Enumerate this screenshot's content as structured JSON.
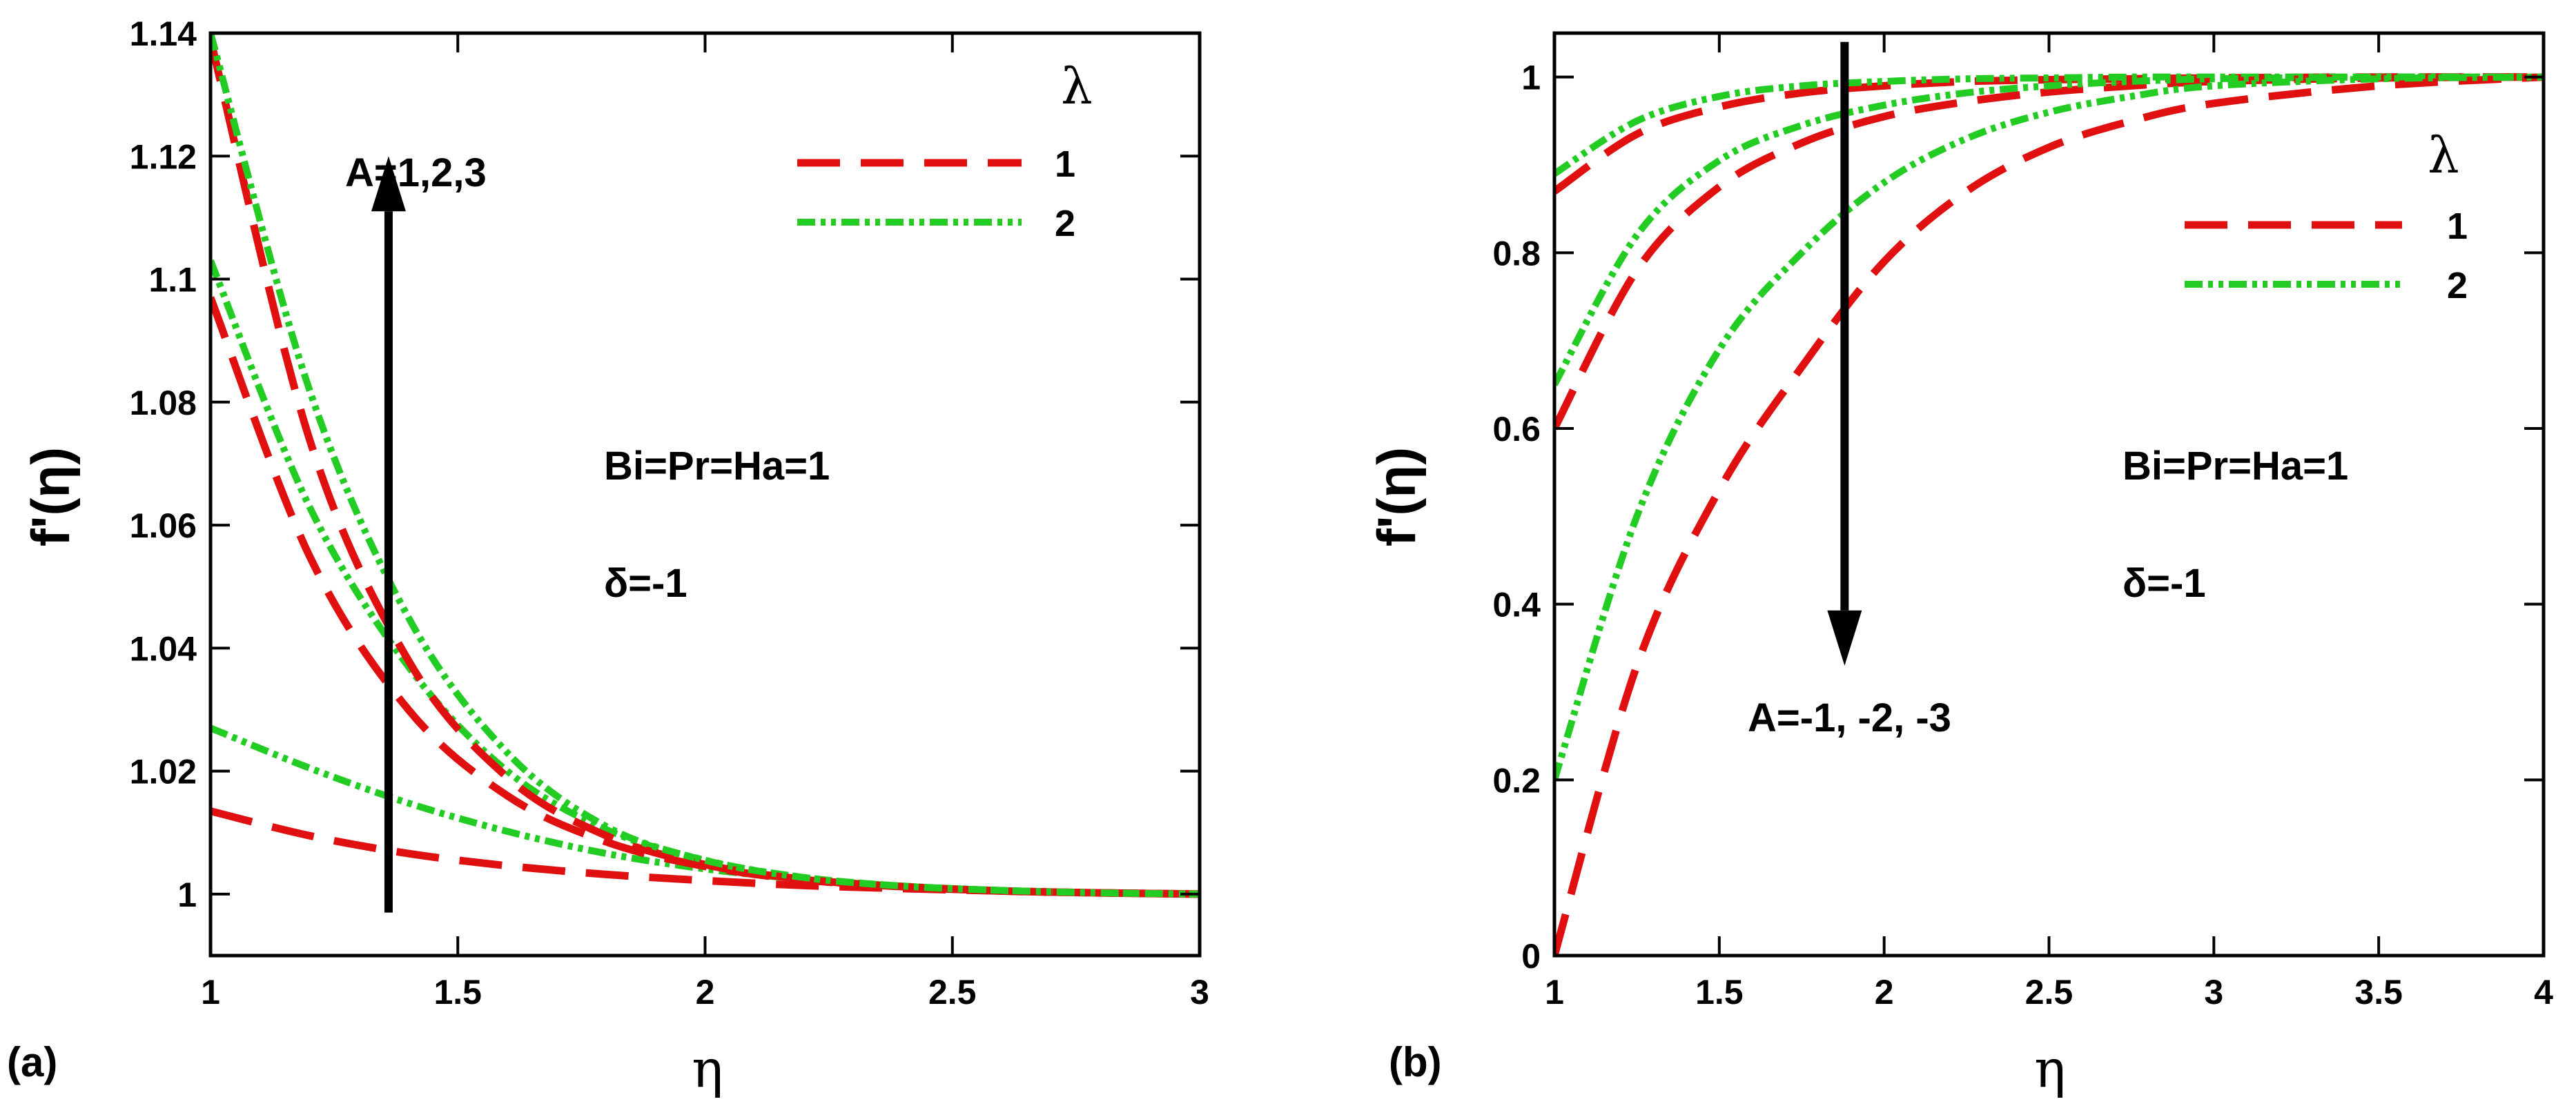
{
  "colors": {
    "red": "#e01010",
    "green": "#22cc22",
    "axis": "#000000"
  },
  "chart_data": [
    {
      "type": "line",
      "panel_label": "(a)",
      "xlabel": "η",
      "ylabel": "f'(η)",
      "xlim": [
        1,
        3
      ],
      "ylim": [
        0.99,
        1.14
      ],
      "xticks": [
        1,
        1.5,
        2,
        2.5,
        3
      ],
      "xtick_labels": [
        "1",
        "1.5",
        "2",
        "2.5",
        "3"
      ],
      "yticks": [
        1,
        1.02,
        1.04,
        1.06,
        1.08,
        1.1,
        1.12,
        1.14
      ],
      "ytick_labels": [
        "1",
        "1.02",
        "1.04",
        "1.06",
        "1.08",
        "1.1",
        "1.12",
        "1.14"
      ],
      "legend_title": "λ",
      "legend_entries": [
        {
          "label": "1",
          "color": "#e01010",
          "style": "dashed"
        },
        {
          "label": "2",
          "color": "#22cc22",
          "style": "dash-dot"
        }
      ],
      "annotations": {
        "arrow_text": "A=1,2,3",
        "params": "Bi=Pr=Ha=1",
        "delta": "δ=-1"
      },
      "arrow": {
        "x": 1.36,
        "y_from": 0.997,
        "y_to": 1.12
      },
      "series": [
        {
          "name": "λ=1, A=1",
          "lambda": 1,
          "A": 1,
          "color": "#e01010",
          "style": "dashed",
          "x": [
            1,
            1.2,
            1.4,
            1.6,
            1.8,
            2,
            2.2,
            2.4,
            2.6,
            2.8,
            3
          ],
          "y": [
            1.0135,
            1.0095,
            1.0066,
            1.0046,
            1.0032,
            1.0022,
            1.0014,
            1.0009,
            1.0005,
            1.0002,
            1.0
          ]
        },
        {
          "name": "λ=2, A=1",
          "lambda": 2,
          "A": 1,
          "color": "#22cc22",
          "style": "dash-dot",
          "x": [
            1,
            1.2,
            1.4,
            1.6,
            1.8,
            2,
            2.2,
            2.4,
            2.6,
            2.8,
            3
          ],
          "y": [
            1.027,
            1.0205,
            1.0148,
            1.0102,
            1.0066,
            1.0041,
            1.0024,
            1.0013,
            1.0006,
            1.0002,
            1.0
          ]
        },
        {
          "name": "λ=1, A=2",
          "lambda": 1,
          "A": 2,
          "color": "#e01010",
          "style": "dashed",
          "x": [
            1,
            1.2,
            1.4,
            1.6,
            1.8,
            2,
            2.2,
            2.4,
            2.6,
            2.8,
            3
          ],
          "y": [
            1.097,
            1.055,
            1.03,
            1.016,
            1.0085,
            1.0045,
            1.0023,
            1.0012,
            1.0005,
            1.0002,
            1.0
          ]
        },
        {
          "name": "λ=2, A=2",
          "lambda": 2,
          "A": 2,
          "color": "#22cc22",
          "style": "dash-dot",
          "x": [
            1,
            1.2,
            1.4,
            1.6,
            1.8,
            2,
            2.2,
            2.4,
            2.6,
            2.8,
            3
          ],
          "y": [
            1.103,
            1.063,
            1.037,
            1.02,
            1.0105,
            1.0055,
            1.0027,
            1.0013,
            1.0006,
            1.0002,
            1.0
          ]
        },
        {
          "name": "λ=1, A=3",
          "lambda": 1,
          "A": 3,
          "color": "#e01010",
          "style": "dashed",
          "x": [
            1,
            1.2,
            1.4,
            1.6,
            1.8,
            2,
            2.2,
            2.4,
            2.6,
            2.8,
            3
          ],
          "y": [
            1.139,
            1.074,
            1.038,
            1.019,
            1.0095,
            1.0048,
            1.0024,
            1.0012,
            1.0005,
            1.0002,
            1.0
          ]
        },
        {
          "name": "λ=2, A=3",
          "lambda": 2,
          "A": 3,
          "color": "#22cc22",
          "style": "dash-dot",
          "x": [
            1,
            1.2,
            1.4,
            1.6,
            1.8,
            2,
            2.2,
            2.4,
            2.6,
            2.8,
            3
          ],
          "y": [
            1.14,
            1.082,
            1.045,
            1.023,
            1.011,
            1.0055,
            1.0027,
            1.0013,
            1.0006,
            1.0002,
            1.0
          ]
        }
      ]
    },
    {
      "type": "line",
      "panel_label": "(b)",
      "xlabel": "η",
      "ylabel": "f'(η)",
      "xlim": [
        1,
        4
      ],
      "ylim": [
        0,
        1.05
      ],
      "xticks": [
        1,
        1.5,
        2,
        2.5,
        3,
        3.5,
        4
      ],
      "xtick_labels": [
        "1",
        "1.5",
        "2",
        "2.5",
        "3",
        "3.5",
        "4"
      ],
      "yticks": [
        0,
        0.2,
        0.4,
        0.6,
        0.8,
        1
      ],
      "ytick_labels": [
        "0",
        "0.2",
        "0.4",
        "0.6",
        "0.8",
        "1"
      ],
      "legend_title": "λ",
      "legend_entries": [
        {
          "label": "1",
          "color": "#e01010",
          "style": "dashed"
        },
        {
          "label": "2",
          "color": "#22cc22",
          "style": "dash-dot"
        }
      ],
      "annotations": {
        "arrow_text": "A=-1, -2, -3",
        "params": "Bi=Pr=Ha=1",
        "delta": "δ=-1"
      },
      "arrow": {
        "x": 1.88,
        "y_from": 1.04,
        "y_to": 0.33
      },
      "series": [
        {
          "name": "λ=1, A=-1",
          "lambda": 1,
          "A": -1,
          "color": "#e01010",
          "style": "dashed",
          "x": [
            1,
            1.25,
            1.5,
            1.75,
            2,
            2.25,
            2.5,
            2.75,
            3,
            3.5,
            4
          ],
          "y": [
            0.87,
            0.935,
            0.966,
            0.982,
            0.99,
            0.995,
            0.997,
            0.998,
            0.999,
            1.0,
            1.0
          ]
        },
        {
          "name": "λ=2, A=-1",
          "lambda": 2,
          "A": -1,
          "color": "#22cc22",
          "style": "dash-dot",
          "x": [
            1,
            1.25,
            1.5,
            1.75,
            2,
            2.25,
            2.5,
            2.75,
            3,
            3.5,
            4
          ],
          "y": [
            0.89,
            0.95,
            0.978,
            0.99,
            0.995,
            0.998,
            0.999,
            1.0,
            1.0,
            1.0,
            1.0
          ]
        },
        {
          "name": "λ=1, A=-2",
          "lambda": 1,
          "A": -2,
          "color": "#e01010",
          "style": "dashed",
          "x": [
            1,
            1.25,
            1.5,
            1.75,
            2,
            2.25,
            2.5,
            2.75,
            3,
            3.5,
            4
          ],
          "y": [
            0.6,
            0.78,
            0.875,
            0.925,
            0.955,
            0.972,
            0.983,
            0.99,
            0.995,
            0.999,
            1.0
          ]
        },
        {
          "name": "λ=2, A=-2",
          "lambda": 2,
          "A": -2,
          "color": "#22cc22",
          "style": "dash-dot",
          "x": [
            1,
            1.25,
            1.5,
            1.75,
            2,
            2.25,
            2.5,
            2.75,
            3,
            3.5,
            4
          ],
          "y": [
            0.65,
            0.82,
            0.905,
            0.945,
            0.968,
            0.982,
            0.99,
            0.995,
            0.998,
            1.0,
            1.0
          ]
        },
        {
          "name": "λ=1, A=-3",
          "lambda": 1,
          "A": -3,
          "color": "#e01010",
          "style": "dashed",
          "x": [
            1,
            1.25,
            1.5,
            1.75,
            2,
            2.25,
            2.5,
            2.75,
            3,
            3.5,
            4
          ],
          "y": [
            0.0,
            0.33,
            0.53,
            0.67,
            0.79,
            0.87,
            0.92,
            0.95,
            0.97,
            0.99,
            1.0
          ]
        },
        {
          "name": "λ=2, A=-3",
          "lambda": 2,
          "A": -3,
          "color": "#22cc22",
          "style": "dash-dot",
          "x": [
            1,
            1.25,
            1.5,
            1.75,
            2,
            2.25,
            2.5,
            2.75,
            3,
            3.5,
            4
          ],
          "y": [
            0.2,
            0.5,
            0.69,
            0.8,
            0.88,
            0.93,
            0.96,
            0.978,
            0.99,
            0.998,
            1.0
          ]
        }
      ]
    }
  ]
}
